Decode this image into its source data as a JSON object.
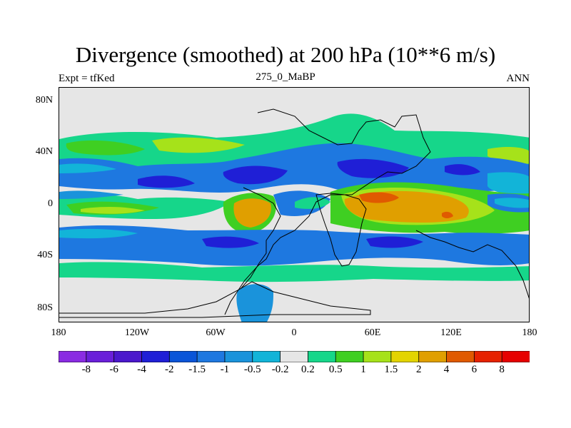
{
  "title": "Divergence (smoothed) at 200 hPa (10**6 m/s)",
  "subtitle_left": "Expt = tfKed",
  "subtitle_center": "275_0_MaBP",
  "subtitle_right": "ANN",
  "y_tick_labels": [
    "80N",
    "40N",
    "0",
    "40S",
    "80S"
  ],
  "x_tick_labels": [
    "180",
    "120W",
    "60W",
    "0",
    "60E",
    "120E",
    "180"
  ],
  "colorbar": {
    "labels": [
      "-8",
      "-6",
      "-4",
      "-2",
      "-1.5",
      "-1",
      "-0.5",
      "-0.2",
      "0.2",
      "0.5",
      "1",
      "1.5",
      "2",
      "4",
      "6",
      "8"
    ],
    "colors": [
      "#8a2be2",
      "#6a1fd9",
      "#4b18cc",
      "#1f1fd6",
      "#0a55d8",
      "#1e78e0",
      "#1a93db",
      "#12b4d8",
      "#e6e6e6",
      "#16d68a",
      "#3fcf22",
      "#a6e21a",
      "#e3d400",
      "#e09f00",
      "#e05a00",
      "#e62200",
      "#e60000"
    ]
  },
  "map_colors": {
    "background": "#e6e6e6",
    "deep_convergence": "#1f1fd6",
    "convergence": "#1e78e0",
    "weak_convergence": "#12b4d8",
    "weak_divergence": "#16d68a",
    "divergence": "#3fcf22",
    "moderate_divergence": "#a6e21a",
    "strong_divergence": "#e09f00",
    "very_strong_divergence": "#e05a00",
    "coastline": "#000000"
  }
}
